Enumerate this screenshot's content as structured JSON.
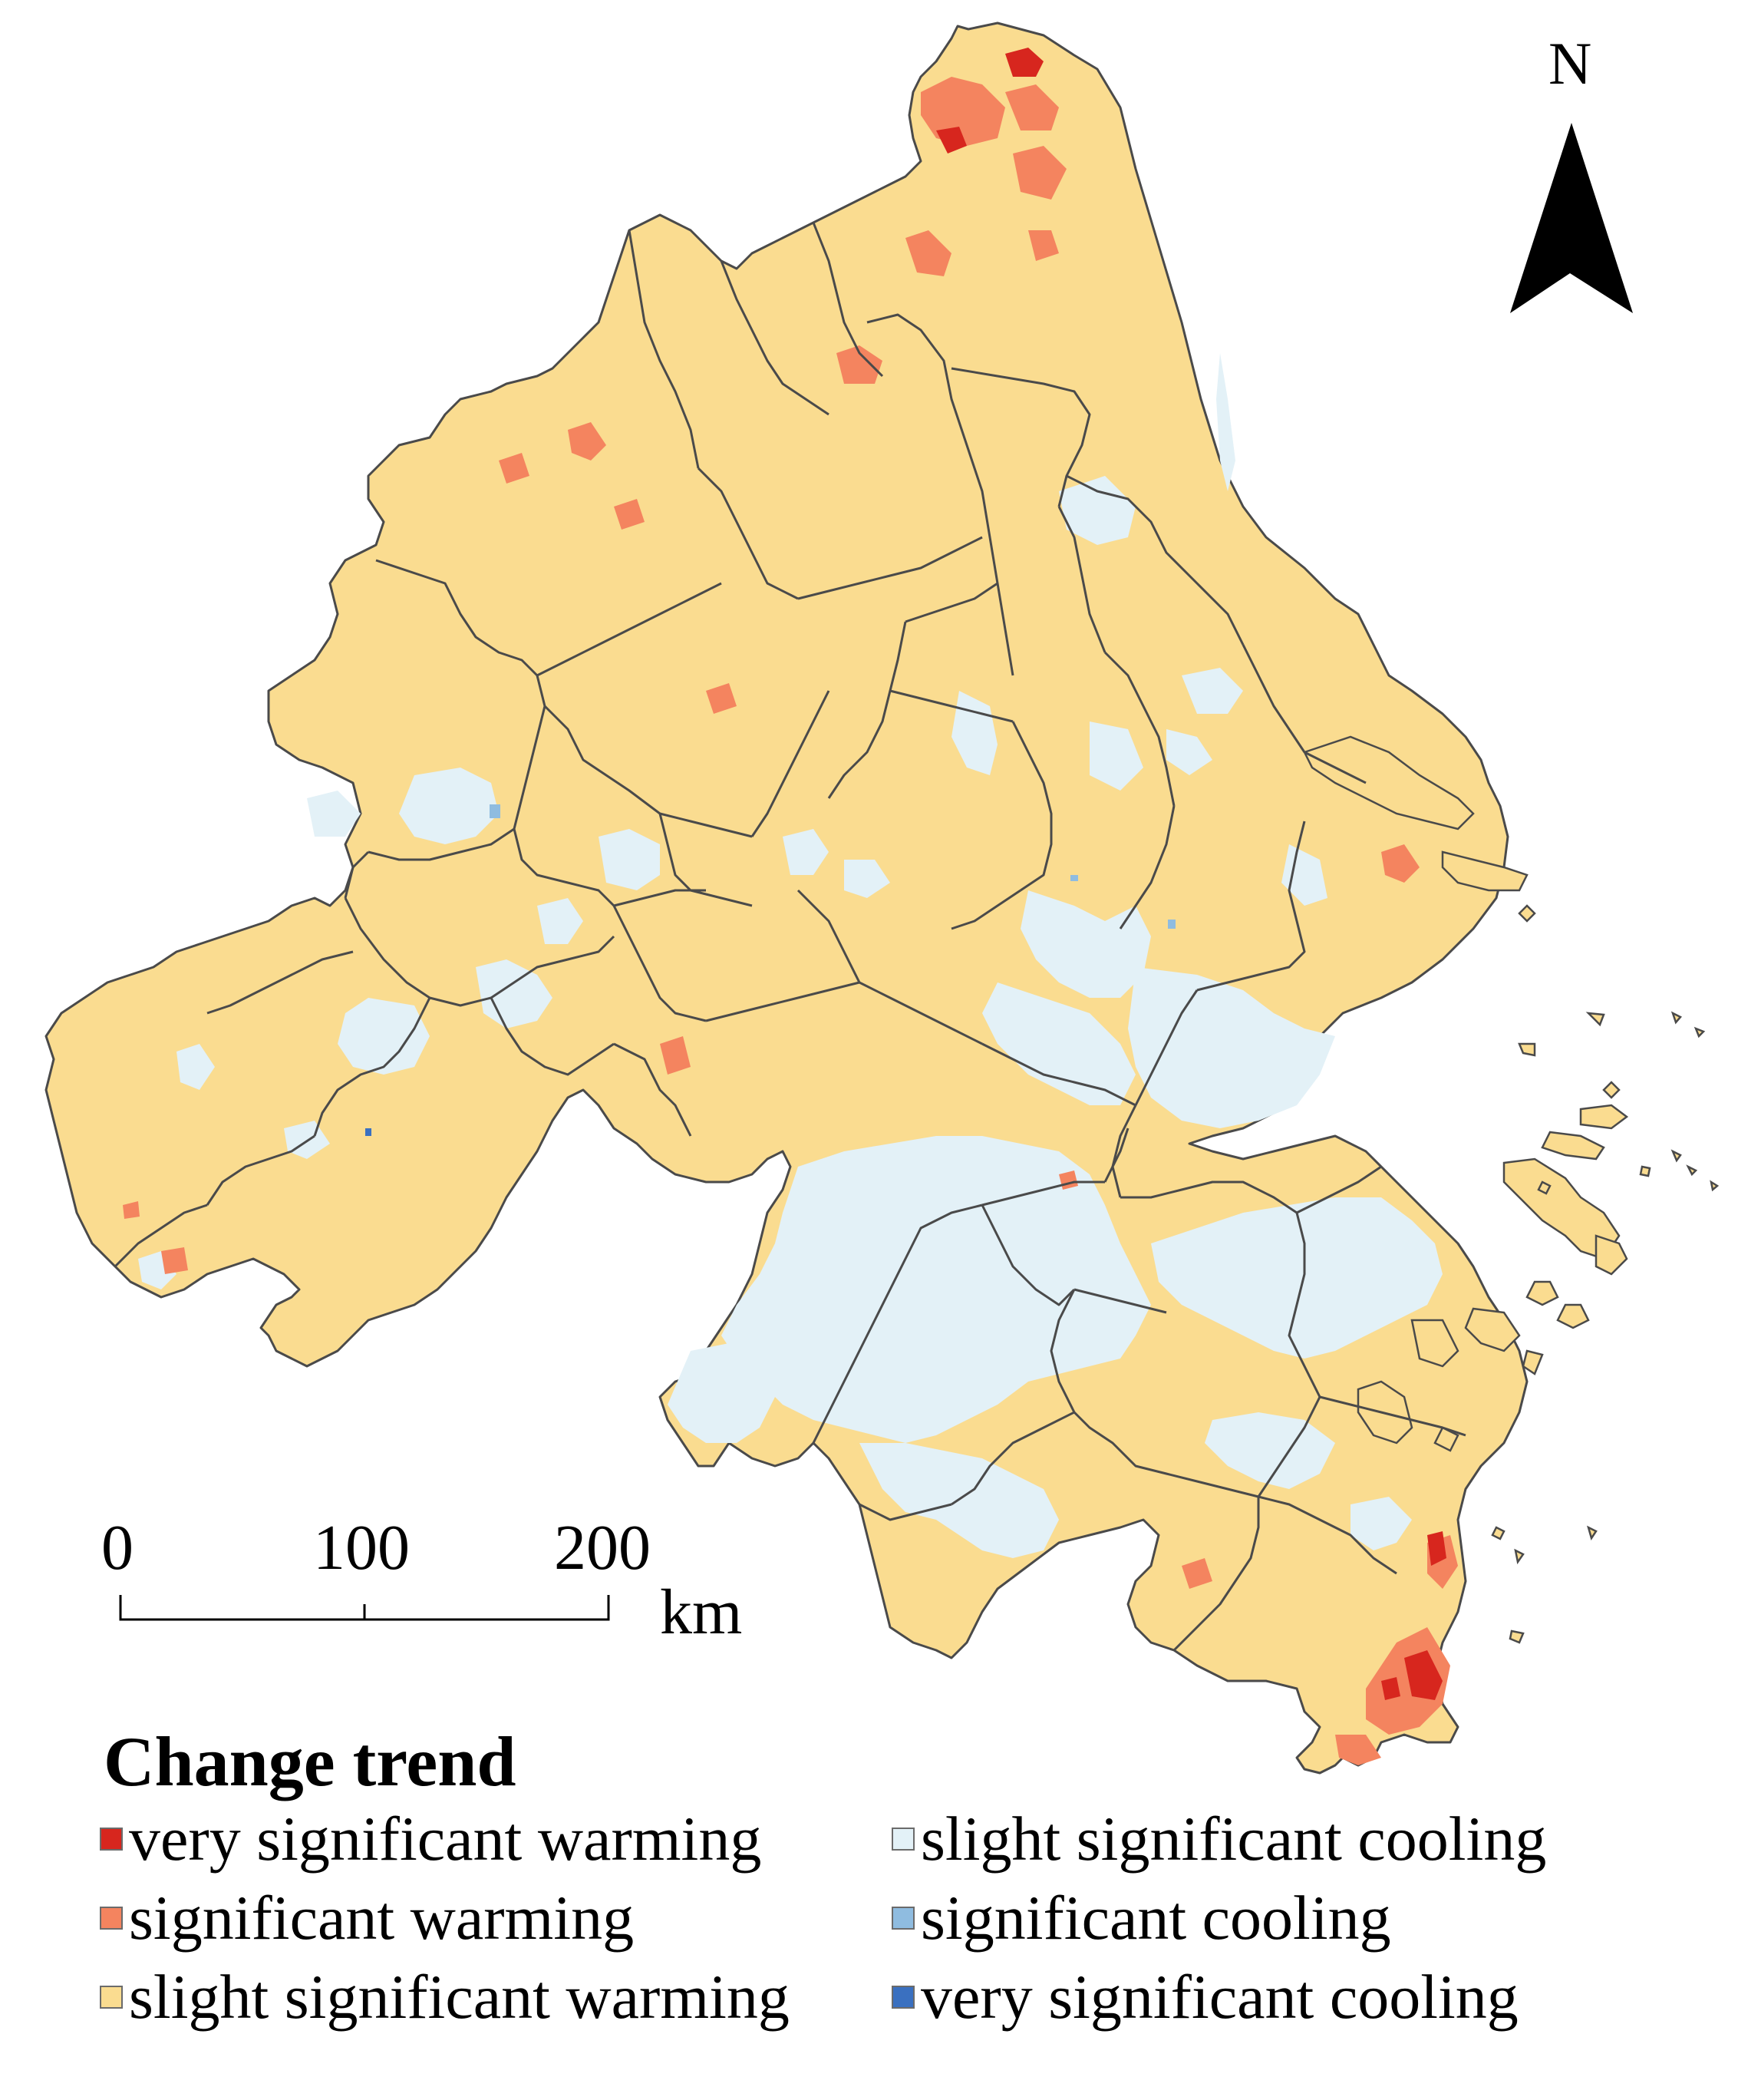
{
  "north_arrow": {
    "label": "N"
  },
  "scale_bar": {
    "ticks": [
      "0",
      "100",
      "200"
    ],
    "unit": "km"
  },
  "legend": {
    "title": "Change trend",
    "items": [
      {
        "label": "very significant warming",
        "color": "#d7261e"
      },
      {
        "label": "significant warming",
        "color": "#f4845f"
      },
      {
        "label": "slight significant warming",
        "color": "#fadc90"
      },
      {
        "label": "slight significant cooling",
        "color": "#e3f1f7"
      },
      {
        "label": "significant cooling",
        "color": "#8fbce0"
      },
      {
        "label": "very significant cooling",
        "color": "#3a70c0"
      }
    ]
  },
  "colors": {
    "boundary": "#4a4a4a",
    "background": "#ffffff"
  }
}
